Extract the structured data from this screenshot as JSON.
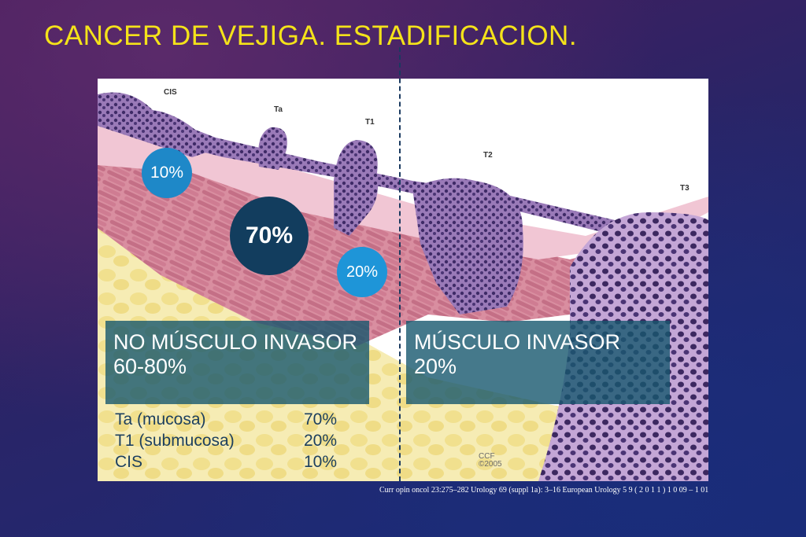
{
  "title": "CANCER DE VEJIGA. ESTADIFICACION.",
  "figure": {
    "stage_labels": {
      "cis": "CIS",
      "ta": "Ta",
      "t1": "T1",
      "t2": "T2",
      "t3": "T3"
    },
    "circles": {
      "c10": "10%",
      "c70": "70%",
      "c20": "20%"
    },
    "non_invasive": {
      "line1": "NO MÚSCULO INVASOR",
      "line2": "60-80%"
    },
    "invasive": {
      "line1": "MÚSCULO INVASOR",
      "line2": "20%"
    },
    "stats": [
      {
        "label": "Ta (mucosa)",
        "value": "70%"
      },
      {
        "label": "T1 (submucosa)",
        "value": "20%"
      },
      {
        "label": "CIS",
        "value": "10%"
      }
    ],
    "credit": {
      "line1": "CCF",
      "line2": "©2005"
    }
  },
  "citation": "Curr opin oncol 23:275–282 Urology 69 (suppl 1a): 3–16 European Urology 5 9 ( 2 0 1 1 ) 1 0 09 – 1 01",
  "colors": {
    "title": "#f4e21a",
    "mucosa": "#8a6aa8",
    "tumor": "#7a5a9e",
    "submucosa": "#f0c8d6",
    "muscle": "#d88a9e",
    "fat": "#f3e69a"
  }
}
